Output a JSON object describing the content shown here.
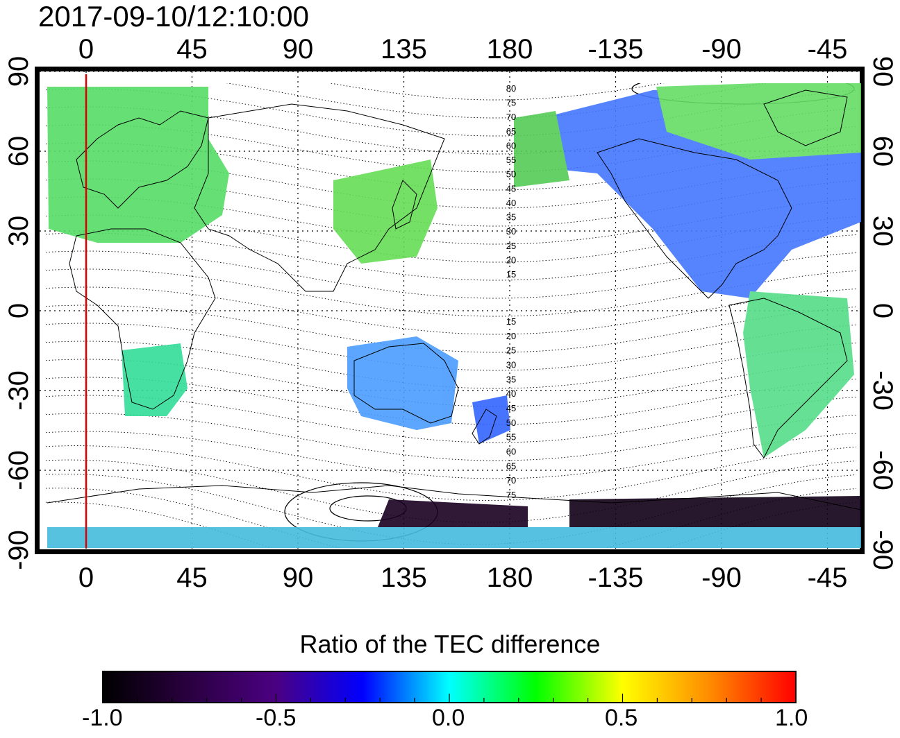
{
  "timestamp": "2017-09-10/12:10:00",
  "map": {
    "lon_tick_labels": [
      "0",
      "45",
      "90",
      "135",
      "180",
      "-135",
      "-90",
      "-45"
    ],
    "lat_tick_labels": [
      "90",
      "60",
      "30",
      "0",
      "-30",
      "-60",
      "-90"
    ],
    "contour_labels_north": [
      "80",
      "75",
      "70",
      "65",
      "60",
      "55",
      "50",
      "45",
      "40",
      "35",
      "30",
      "25",
      "20",
      "15"
    ],
    "contour_labels_south": [
      "15",
      "20",
      "25",
      "30",
      "35",
      "40",
      "45",
      "50",
      "55",
      "60",
      "65",
      "70",
      "75"
    ],
    "marker_longitude": 0
  },
  "colorbar": {
    "title": "Ratio of the TEC difference",
    "tick_labels": [
      "-1.0",
      "-0.5",
      "0.0",
      "0.5",
      "1.0"
    ],
    "range": [
      -1.0,
      1.0
    ],
    "colors": [
      "#000000",
      "#2a0040",
      "#4b0082",
      "#0000ff",
      "#00ffff",
      "#00ff00",
      "#ffff00",
      "#ff8c00",
      "#ff0000"
    ]
  },
  "colors": {
    "marker_line": "#dd0000",
    "coast": "#000000",
    "grid": "#000000"
  }
}
